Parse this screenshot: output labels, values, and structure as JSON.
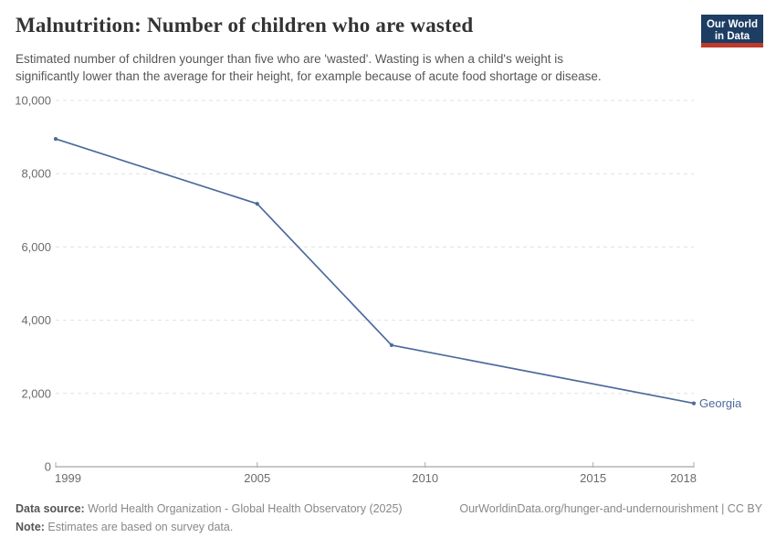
{
  "header": {
    "title": "Malnutrition: Number of children who are wasted",
    "subtitle_line1": "Estimated number of children younger than five who are 'wasted'. Wasting is when a child's weight is",
    "subtitle_line2": "significantly lower than the average for their height, for example because of acute food shortage or disease.",
    "logo": {
      "line1": "Our World",
      "line2": "in Data",
      "bg_color": "#1d3d63",
      "bar_color": "#c0392b"
    }
  },
  "chart_data": {
    "type": "line",
    "title": "Malnutrition: Number of children who are wasted",
    "xlabel": "",
    "ylabel": "",
    "xlim": [
      1999,
      2018
    ],
    "ylim": [
      0,
      10000
    ],
    "grid": "horizontal-dashed",
    "legend_position": "end-of-line-label",
    "x_ticks": [
      {
        "value": 1999,
        "label": "1999"
      },
      {
        "value": 2005,
        "label": "2005"
      },
      {
        "value": 2010,
        "label": "2010"
      },
      {
        "value": 2015,
        "label": "2015"
      },
      {
        "value": 2018,
        "label": "2018"
      }
    ],
    "y_ticks": [
      {
        "value": 0,
        "label": "0"
      },
      {
        "value": 2000,
        "label": "2,000"
      },
      {
        "value": 4000,
        "label": "4,000"
      },
      {
        "value": 6000,
        "label": "6,000"
      },
      {
        "value": 8000,
        "label": "8,000"
      },
      {
        "value": 10000,
        "label": "10,000"
      }
    ],
    "series": [
      {
        "name": "Georgia",
        "color": "#4c6a9c",
        "points": [
          {
            "year": 1999,
            "value": 8950
          },
          {
            "year": 2005,
            "value": 7180
          },
          {
            "year": 2009,
            "value": 3320
          },
          {
            "year": 2018,
            "value": 1730
          }
        ]
      }
    ]
  },
  "footer": {
    "source_label": "Data source:",
    "source_value": " World Health Organization - Global Health Observatory (2025)",
    "link": "OurWorldinData.org/hunger-and-undernourishment | CC BY",
    "note_label": "Note:",
    "note_value": " Estimates are based on survey data."
  },
  "colors": {
    "title": "#333333",
    "subtitle": "#575757",
    "axis_line": "#8f8f8f",
    "gridline": "#e0e0e0",
    "tick_label": "#6b6b6b",
    "series_blue": "#4c6a9c"
  }
}
